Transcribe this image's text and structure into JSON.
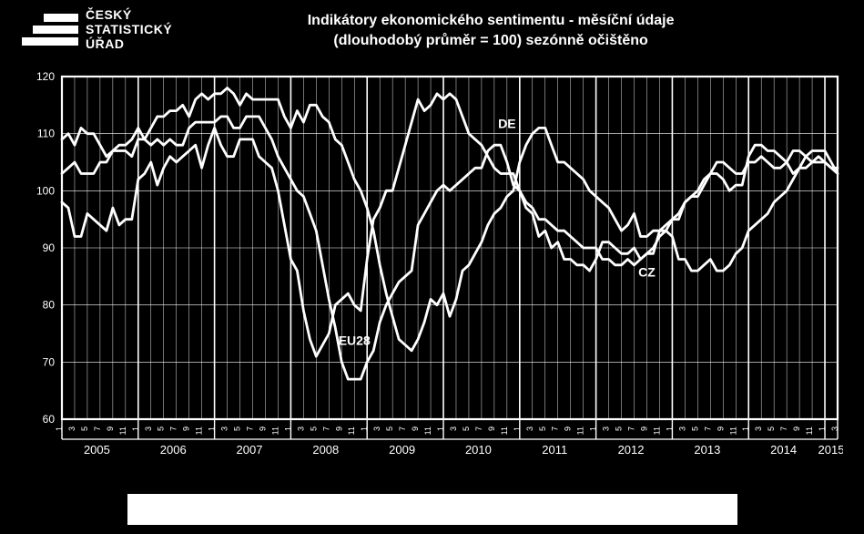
{
  "logo": {
    "line1": "ČESKÝ",
    "line2": "STATISTICKÝ",
    "line3": "ÚŘAD"
  },
  "title": {
    "line1": "Indikátory ekonomického sentimentu - měsíční údaje",
    "line2": "(dlouhodobý průměr = 100) sezónně očištěno"
  },
  "chart": {
    "type": "line",
    "background_color": "#000000",
    "line_color": "#ffffff",
    "grid_color": "#ffffff",
    "outer_border_color": "#ffffff",
    "ylim": [
      60,
      120
    ],
    "ytick_step": 10,
    "yticks": [
      60,
      70,
      80,
      90,
      100,
      110,
      120
    ],
    "x_months": [
      1,
      3,
      5,
      7,
      9,
      11,
      1,
      3,
      5,
      7,
      9,
      11,
      1,
      3,
      5,
      7,
      9,
      11,
      1,
      3,
      5,
      7,
      9,
      11,
      1,
      3,
      5,
      7,
      9,
      11,
      1,
      3,
      5,
      7,
      9,
      11,
      1,
      3,
      5,
      7,
      9,
      11,
      1,
      3,
      5,
      7,
      9,
      11,
      1,
      3,
      5,
      7,
      9,
      11,
      1,
      3,
      5,
      7,
      9,
      11,
      1,
      3
    ],
    "years": [
      "2005",
      "2006",
      "2007",
      "2008",
      "2009",
      "2010",
      "2011",
      "2012",
      "2013",
      "2014",
      "2015"
    ],
    "series_stroke_width": 2.8,
    "annotations": [
      {
        "label": "DE",
        "xi": 70,
        "y": 111
      },
      {
        "label": "CZ",
        "xi": 92,
        "y": 85
      },
      {
        "label": "EU28",
        "xi": 46,
        "y": 73
      }
    ],
    "series": [
      {
        "name": "DE",
        "values": [
          98,
          97,
          92,
          92,
          96,
          95,
          94,
          93,
          97,
          94,
          95,
          95,
          102,
          103,
          105,
          101,
          104,
          106,
          105,
          106,
          107,
          108,
          104,
          108,
          111,
          108,
          106,
          106,
          109,
          109,
          109,
          106,
          105,
          104,
          100,
          94,
          88,
          86,
          79,
          74,
          71,
          73,
          75,
          80,
          81,
          82,
          80,
          79,
          88,
          95,
          97,
          100,
          100,
          104,
          108,
          112,
          116,
          114,
          115,
          117,
          116,
          117,
          116,
          113,
          110,
          109,
          108,
          106,
          104,
          103,
          103,
          103,
          100,
          97,
          96,
          92,
          93,
          90,
          91,
          88,
          88,
          87,
          87,
          86,
          88,
          91,
          91,
          90,
          89,
          89,
          90,
          88,
          89,
          89,
          93,
          94,
          95,
          95,
          98,
          99,
          99,
          101,
          103,
          103,
          102,
          100,
          101,
          101,
          106,
          108,
          108,
          107,
          107,
          106,
          105,
          103,
          104,
          104,
          105,
          106,
          105,
          104,
          103
        ]
      },
      {
        "name": "EU28",
        "values": [
          103,
          104,
          105,
          103,
          103,
          103,
          105,
          105,
          107,
          107,
          107,
          106,
          109,
          109,
          108,
          109,
          108,
          109,
          108,
          108,
          111,
          112,
          112,
          112,
          112,
          113,
          113,
          111,
          111,
          113,
          113,
          113,
          111,
          109,
          106,
          104,
          102,
          100,
          99,
          96,
          93,
          87,
          81,
          76,
          70,
          67,
          67,
          67,
          70,
          72,
          77,
          80,
          82,
          84,
          85,
          86,
          94,
          96,
          98,
          100,
          101,
          100,
          101,
          102,
          103,
          104,
          104,
          107,
          108,
          108,
          105,
          101,
          100,
          98,
          97,
          95,
          95,
          94,
          93,
          93,
          92,
          91,
          90,
          90,
          90,
          88,
          88,
          87,
          87,
          88,
          87,
          88,
          89,
          90,
          92,
          93,
          95,
          96,
          98,
          99,
          100,
          102,
          103,
          105,
          105,
          104,
          103,
          103,
          105,
          105,
          106,
          105,
          104,
          104,
          105,
          107,
          107,
          106,
          105,
          105,
          105,
          104,
          104
        ]
      },
      {
        "name": "CZ",
        "values": [
          109,
          110,
          108,
          111,
          110,
          110,
          108,
          106,
          107,
          108,
          108,
          109,
          111,
          109,
          111,
          113,
          113,
          114,
          114,
          115,
          113,
          116,
          117,
          116,
          117,
          117,
          118,
          117,
          115,
          117,
          116,
          116,
          116,
          116,
          116,
          113,
          111,
          114,
          112,
          115,
          115,
          113,
          112,
          109,
          108,
          105,
          102,
          100,
          97,
          93,
          87,
          82,
          78,
          74,
          73,
          72,
          74,
          77,
          81,
          80,
          82,
          78,
          81,
          86,
          87,
          89,
          91,
          94,
          96,
          97,
          99,
          100,
          105,
          108,
          110,
          111,
          111,
          108,
          105,
          105,
          104,
          103,
          102,
          100,
          99,
          98,
          97,
          95,
          93,
          94,
          96,
          92,
          92,
          93,
          93,
          93,
          92,
          88,
          88,
          86,
          86,
          87,
          88,
          86,
          86,
          87,
          89,
          90,
          93,
          94,
          95,
          96,
          98,
          99,
          100,
          102,
          104,
          106,
          107,
          107,
          107,
          105,
          103
        ]
      }
    ],
    "label_fontsize": 12,
    "title_fontsize": 16,
    "legend_background": "#ffffff"
  }
}
